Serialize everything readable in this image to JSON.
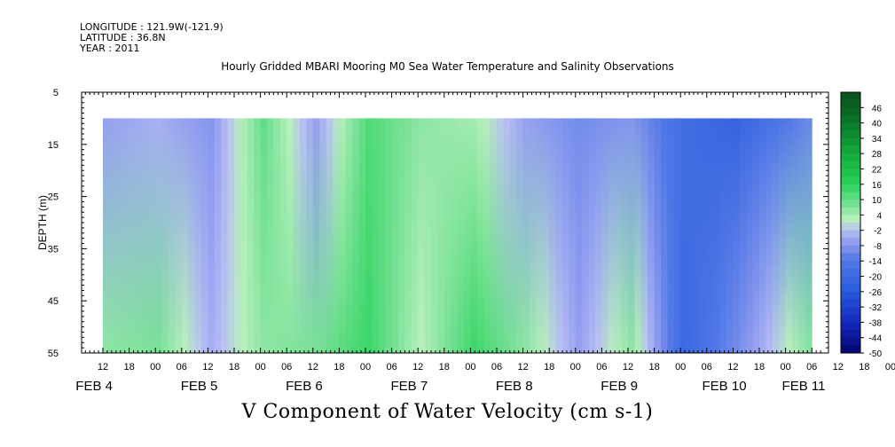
{
  "header": {
    "longitude": "LONGITUDE : 121.9W(-121.9)",
    "latitude": "LATITUDE : 36.8N",
    "year": "YEAR : 2011"
  },
  "chart_data": {
    "type": "heatmap",
    "title": "Hourly Gridded MBARI Mooring M0 Sea Water Temperature and Salinity Observations",
    "xlabel": "V Component of Water Velocity (cm s-1)",
    "ylabel": "DEPTH (m)",
    "ylim": [
      5,
      55
    ],
    "y_inverted": true,
    "y_ticks": [
      5,
      15,
      25,
      35,
      45,
      55
    ],
    "x_hour_ticks": [
      "12",
      "18",
      "00",
      "06",
      "12",
      "18",
      "00",
      "06",
      "12",
      "18",
      "00",
      "06",
      "12",
      "18",
      "00",
      "06",
      "12",
      "18",
      "00",
      "06",
      "12",
      "18",
      "00",
      "06",
      "12",
      "18",
      "00",
      "06",
      "12",
      "18",
      "00",
      "06"
    ],
    "x_day_labels": [
      "FEB  4",
      "FEB  5",
      "FEB  6",
      "FEB  7",
      "FEB  8",
      "FEB  9",
      "FEB 10",
      "FEB 11"
    ],
    "data_depth_range": [
      10,
      55
    ],
    "colorbar": {
      "ticks": [
        "46",
        "40",
        "34",
        "28",
        "22",
        "16",
        "10",
        "4",
        "-2",
        "-8",
        "-14",
        "-20",
        "-26",
        "-32",
        "-38",
        "-44",
        "-50"
      ],
      "range": [
        -50,
        52
      ]
    },
    "bands": [
      {
        "time": "FEB 4 12",
        "top": -6,
        "bottom": 6
      },
      {
        "time": "FEB 5 00",
        "top": -4,
        "bottom": 8
      },
      {
        "time": "FEB 5 12",
        "top": -8,
        "bottom": -4
      },
      {
        "time": "FEB 6 00",
        "top": 10,
        "bottom": 6
      },
      {
        "time": "FEB 6 12",
        "top": -6,
        "bottom": 8
      },
      {
        "time": "FEB 7 00",
        "top": 12,
        "bottom": 14
      },
      {
        "time": "FEB 7 12",
        "top": 6,
        "bottom": 2
      },
      {
        "time": "FEB 8 00",
        "top": 4,
        "bottom": 14
      },
      {
        "time": "FEB 8 12",
        "top": -6,
        "bottom": 6
      },
      {
        "time": "FEB 9 00",
        "top": -10,
        "bottom": -6
      },
      {
        "time": "FEB 9 12",
        "top": -8,
        "bottom": 6
      },
      {
        "time": "FEB 10 00",
        "top": -18,
        "bottom": -20
      },
      {
        "time": "FEB 10 12",
        "top": -22,
        "bottom": -10
      },
      {
        "time": "FEB 11 06",
        "top": -10,
        "bottom": 8
      }
    ]
  }
}
